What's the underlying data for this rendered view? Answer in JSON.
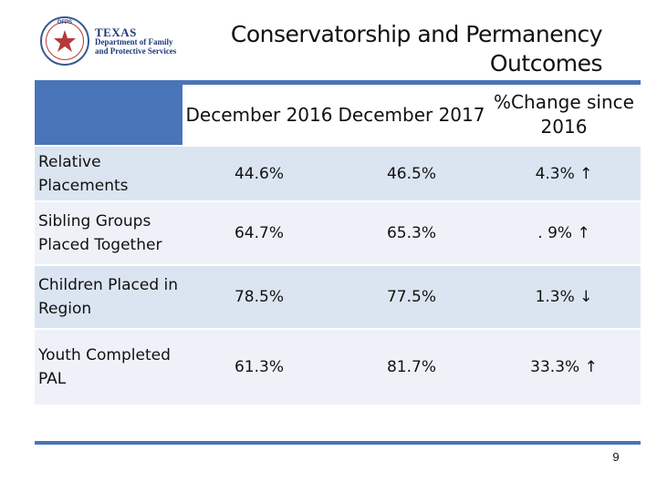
{
  "logo": {
    "seal_text": "DFPS",
    "line1": "TEXAS",
    "line2": "Department of Family",
    "line3": "and Protective Services"
  },
  "title": "Conservatorship and Permanency Outcomes",
  "colors": {
    "accent": "#4a74b8",
    "row_shade": "#dbe5f1",
    "row_light": "#eef2f8"
  },
  "table": {
    "headers": [
      "",
      "December 2016",
      "December 2017",
      "%Change since 2016"
    ],
    "rows": [
      {
        "label": "Relative Placements",
        "dec2016": "44.6%",
        "dec2017": "46.5%",
        "change": "4.3% ↑"
      },
      {
        "label": "Sibling Groups Placed Together",
        "dec2016": "64.7%",
        "dec2017": "65.3%",
        "change": ". 9% ↑"
      },
      {
        "label": "Children Placed in Region",
        "dec2016": "78.5%",
        "dec2017": "77.5%",
        "change": "1.3% ↓"
      },
      {
        "label": "Youth Completed PAL",
        "dec2016": "61.3%",
        "dec2017": "81.7%",
        "change": "33.3% ↑"
      }
    ]
  },
  "page_number": "9"
}
